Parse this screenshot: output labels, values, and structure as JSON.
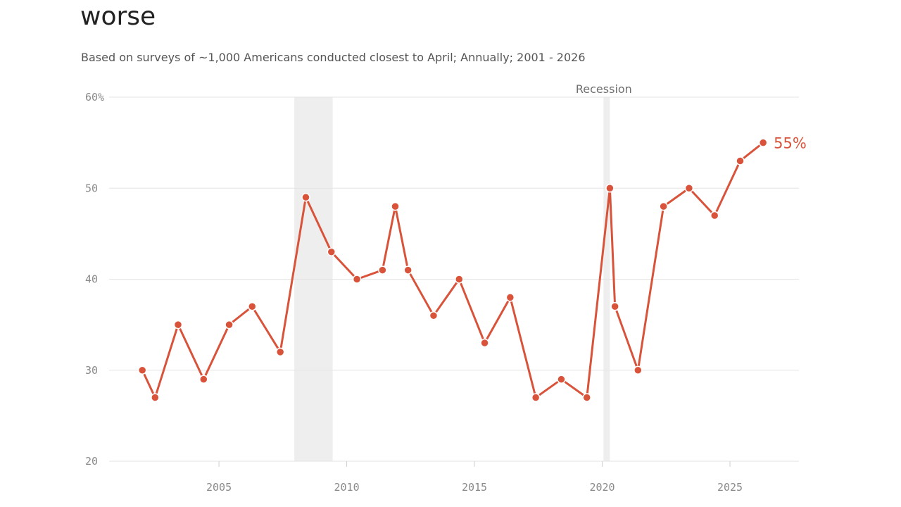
{
  "title": "worse",
  "subtitle": "Based on surveys of ~1,000 Americans conducted closest to April; Annually; 2001 - 2026",
  "colors": {
    "line": "#d9533a",
    "band": "#eeeeee",
    "grid": "#e3e3e3",
    "axis_text": "#8a8a8a"
  },
  "chart_data": {
    "type": "line",
    "title": "worse",
    "subtitle": "Based on surveys of ~1,000 Americans conducted closest to April; Annually; 2001 - 2026",
    "xlabel": "",
    "ylabel": "",
    "xlim": [
      2000.7,
      2027.7
    ],
    "ylim": [
      20,
      60
    ],
    "x_ticks": [
      2005,
      2010,
      2015,
      2020,
      2025
    ],
    "x_tick_labels": [
      "2005",
      "2010",
      "2015",
      "2020",
      "2025"
    ],
    "y_ticks": [
      20,
      30,
      40,
      50,
      60
    ],
    "y_tick_labels": [
      "20",
      "30",
      "40",
      "50",
      "60%"
    ],
    "grid": true,
    "series": [
      {
        "points": [
          [
            2002.0,
            30
          ],
          [
            2002.5,
            27
          ],
          [
            2003.4,
            35
          ],
          [
            2004.4,
            29
          ],
          [
            2005.4,
            35
          ],
          [
            2006.3,
            37
          ],
          [
            2007.4,
            32
          ],
          [
            2008.4,
            49
          ],
          [
            2009.4,
            43
          ],
          [
            2010.4,
            40
          ],
          [
            2011.4,
            41
          ],
          [
            2011.9,
            48
          ],
          [
            2012.4,
            41
          ],
          [
            2013.4,
            36
          ],
          [
            2014.4,
            40
          ],
          [
            2015.4,
            33
          ],
          [
            2016.4,
            38
          ],
          [
            2017.4,
            27
          ],
          [
            2018.4,
            29
          ],
          [
            2019.4,
            27
          ],
          [
            2020.3,
            50
          ],
          [
            2020.5,
            37
          ],
          [
            2021.4,
            30
          ],
          [
            2022.4,
            48
          ],
          [
            2023.4,
            50
          ],
          [
            2024.4,
            47
          ],
          [
            2025.4,
            53
          ],
          [
            2026.3,
            55
          ]
        ]
      }
    ],
    "shaded_regions": [
      {
        "x": [
          2007.95,
          2009.45
        ]
      },
      {
        "x": [
          2020.05,
          2020.3
        ],
        "label": "Recession"
      }
    ],
    "end_label": "55%"
  }
}
